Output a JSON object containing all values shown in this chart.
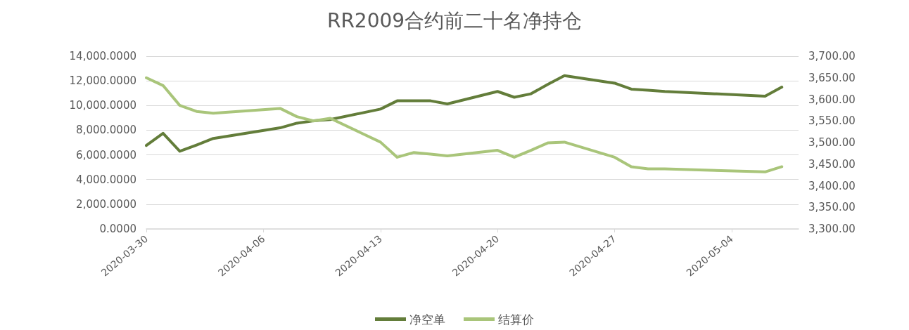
{
  "chart_data": {
    "type": "line",
    "title": "RR2009合约前二十名净持仓",
    "x": [
      "2020-03-30",
      "2020-03-31",
      "2020-04-01",
      "2020-04-02",
      "2020-04-03",
      "2020-04-07",
      "2020-04-08",
      "2020-04-09",
      "2020-04-10",
      "2020-04-13",
      "2020-04-14",
      "2020-04-15",
      "2020-04-16",
      "2020-04-17",
      "2020-04-20",
      "2020-04-21",
      "2020-04-22",
      "2020-04-23",
      "2020-04-24",
      "2020-04-27",
      "2020-04-28",
      "2020-04-29",
      "2020-04-30",
      "2020-05-06",
      "2020-05-07"
    ],
    "series": [
      {
        "name": "净空单",
        "color": "#637d3a",
        "values": [
          6760,
          7750,
          6290,
          6800,
          7330,
          8190,
          8570,
          8760,
          8860,
          9710,
          10380,
          10380,
          10380,
          10130,
          11140,
          10670,
          10950,
          11710,
          12420,
          11810,
          11330,
          11240,
          11140,
          10760,
          11490
        ]
      },
      {
        "name": "结算价",
        "color": "#a9c57a",
        "axis": "y2",
        "values": [
          3650,
          3632,
          3586,
          3572,
          3568,
          3579,
          3560,
          3550,
          3556,
          3501,
          3466,
          3477,
          3473,
          3469,
          3482,
          3466,
          3482,
          3499,
          3501,
          3466,
          3444,
          3439,
          3439,
          3432,
          3444
        ]
      }
    ],
    "xlim": [
      "2020-03-30",
      "2020-05-08"
    ],
    "xticks": [
      "2020-03-30",
      "2020-04-06",
      "2020-04-13",
      "2020-04-20",
      "2020-04-27",
      "2020-05-04"
    ],
    "ylim": [
      0,
      14000
    ],
    "yticks": [
      {
        "value": 0,
        "label": "0.0000"
      },
      {
        "value": 2000,
        "label": "2,000.0000"
      },
      {
        "value": 4000,
        "label": "4,000.0000"
      },
      {
        "value": 6000,
        "label": "6,000.0000"
      },
      {
        "value": 8000,
        "label": "8,000.0000"
      },
      {
        "value": 10000,
        "label": "10,000.0000"
      },
      {
        "value": 12000,
        "label": "12,000.0000"
      },
      {
        "value": 14000,
        "label": "14,000.0000"
      }
    ],
    "y2lim": [
      3300,
      3700
    ],
    "y2ticks": [
      {
        "value": 3300,
        "label": "3,300.00"
      },
      {
        "value": 3350,
        "label": "3,350.00"
      },
      {
        "value": 3400,
        "label": "3,400.00"
      },
      {
        "value": 3450,
        "label": "3,450.00"
      },
      {
        "value": 3500,
        "label": "3,500.00"
      },
      {
        "value": 3550,
        "label": "3,550.00"
      },
      {
        "value": 3600,
        "label": "3,600.00"
      },
      {
        "value": 3650,
        "label": "3,650.00"
      },
      {
        "value": 3700,
        "label": "3,700.00"
      }
    ],
    "grid": "y",
    "legend": "bottom",
    "marker": "none",
    "line_style": "solid"
  }
}
